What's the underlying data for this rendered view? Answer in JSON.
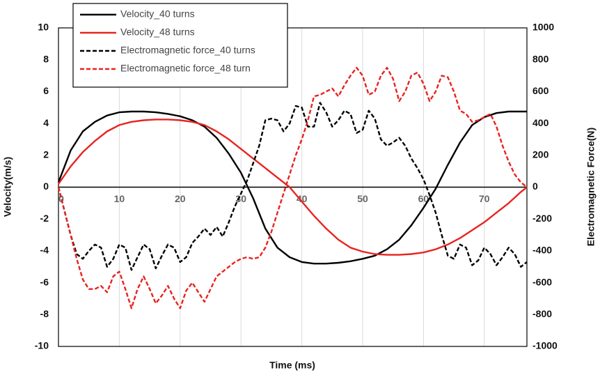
{
  "chart_data": {
    "type": "line",
    "xlabel": "Time (ms)",
    "ylabel": "Velocity(m/s)",
    "y2label": "Electromagnetic Force(N)",
    "xlim": [
      0,
      77
    ],
    "xticks": [
      0,
      10,
      20,
      30,
      40,
      50,
      60,
      70
    ],
    "ylim": [
      -10,
      10
    ],
    "yticks": [
      -10,
      -8,
      -6,
      -4,
      -2,
      0,
      2,
      4,
      6,
      8,
      10
    ],
    "y2lim": [
      -1000,
      1000
    ],
    "y2ticks": [
      -1000,
      -800,
      -600,
      -400,
      -200,
      0,
      200,
      400,
      600,
      800,
      1000
    ],
    "grid": true,
    "legend": "upper left",
    "series": [
      {
        "name": "Velocity_40 turns",
        "color": "#000000",
        "linestyle": "solid",
        "x": [
          0,
          2,
          4,
          6,
          8,
          10,
          12,
          14,
          16,
          18,
          20,
          22,
          24,
          26,
          28,
          30,
          32,
          34,
          36,
          38,
          40,
          42,
          44,
          46,
          48,
          50,
          52,
          54,
          56,
          58,
          60,
          62,
          64,
          66,
          68,
          70,
          72,
          74,
          76,
          77
        ],
        "values": [
          0.3,
          2.3,
          3.5,
          4.1,
          4.5,
          4.7,
          4.75,
          4.75,
          4.7,
          4.6,
          4.45,
          4.2,
          3.8,
          3.1,
          2.1,
          0.9,
          -0.7,
          -2.6,
          -3.8,
          -4.4,
          -4.7,
          -4.8,
          -4.8,
          -4.75,
          -4.65,
          -4.5,
          -4.3,
          -3.9,
          -3.3,
          -2.4,
          -1.3,
          -0.1,
          1.4,
          2.8,
          3.9,
          4.4,
          4.65,
          4.75,
          4.75,
          4.75
        ]
      },
      {
        "name": "Velocity_48 turns",
        "color": "#e8231f",
        "linestyle": "solid",
        "x": [
          0,
          2,
          4,
          6,
          8,
          10,
          12,
          14,
          16,
          18,
          20,
          22,
          24,
          26,
          28,
          30,
          32,
          34,
          36,
          38,
          40,
          42,
          44,
          46,
          48,
          50,
          52,
          54,
          56,
          58,
          60,
          62,
          64,
          66,
          68,
          70,
          72,
          74,
          76,
          77
        ],
        "values": [
          0.2,
          1.3,
          2.2,
          2.9,
          3.5,
          3.9,
          4.1,
          4.2,
          4.25,
          4.25,
          4.2,
          4.1,
          3.9,
          3.5,
          3.0,
          2.4,
          1.8,
          1.2,
          0.6,
          0,
          -0.9,
          -1.8,
          -2.6,
          -3.3,
          -3.8,
          -4.05,
          -4.2,
          -4.25,
          -4.25,
          -4.2,
          -4.1,
          -3.9,
          -3.6,
          -3.2,
          -2.7,
          -2.2,
          -1.6,
          -1.0,
          -0.3,
          0
        ]
      },
      {
        "name": "Electromagnetic force_40 turns",
        "color": "#000000",
        "linestyle": "dashed",
        "axis": "y2",
        "x": [
          0,
          1,
          2,
          3,
          4,
          5,
          6,
          7,
          8,
          9,
          10,
          11,
          12,
          13,
          14,
          15,
          16,
          17,
          18,
          19,
          20,
          21,
          22,
          23,
          24,
          25,
          26,
          27,
          28,
          29,
          30,
          31,
          32,
          33,
          34,
          35,
          36,
          37,
          38,
          39,
          40,
          41,
          42,
          43,
          44,
          45,
          46,
          47,
          48,
          49,
          50,
          51,
          52,
          53,
          54,
          55,
          56,
          57,
          58,
          59,
          60,
          61,
          62,
          63,
          64,
          65,
          66,
          67,
          68,
          69,
          70,
          71,
          72,
          73,
          74,
          75,
          76,
          77
        ],
        "values": [
          0,
          -150,
          -300,
          -420,
          -450,
          -400,
          -360,
          -380,
          -500,
          -450,
          -360,
          -380,
          -520,
          -440,
          -360,
          -390,
          -510,
          -430,
          -360,
          -380,
          -470,
          -440,
          -350,
          -310,
          -260,
          -300,
          -250,
          -310,
          -220,
          -120,
          -40,
          40,
          150,
          260,
          420,
          430,
          420,
          350,
          400,
          510,
          500,
          380,
          380,
          530,
          470,
          380,
          420,
          480,
          460,
          340,
          360,
          480,
          430,
          300,
          260,
          280,
          310,
          260,
          180,
          120,
          50,
          -50,
          -160,
          -300,
          -430,
          -450,
          -360,
          -380,
          -490,
          -460,
          -380,
          -420,
          -490,
          -440,
          -380,
          -420,
          -500,
          -470
        ]
      },
      {
        "name": "Electromagnetic force_48 turn",
        "color": "#e8231f",
        "linestyle": "dashed",
        "axis": "y2",
        "x": [
          0,
          1,
          2,
          3,
          4,
          5,
          6,
          7,
          8,
          9,
          10,
          11,
          12,
          13,
          14,
          15,
          16,
          17,
          18,
          19,
          20,
          21,
          22,
          23,
          24,
          25,
          26,
          27,
          28,
          29,
          30,
          31,
          32,
          33,
          34,
          35,
          36,
          37,
          38,
          39,
          40,
          41,
          42,
          43,
          44,
          45,
          46,
          47,
          48,
          49,
          50,
          51,
          52,
          53,
          54,
          55,
          56,
          57,
          58,
          59,
          60,
          61,
          62,
          63,
          64,
          65,
          66,
          67,
          68,
          69,
          70,
          71,
          72,
          73,
          74,
          75,
          76,
          77
        ],
        "values": [
          0,
          -150,
          -300,
          -450,
          -580,
          -640,
          -640,
          -620,
          -660,
          -560,
          -530,
          -640,
          -760,
          -640,
          -560,
          -640,
          -730,
          -680,
          -620,
          -700,
          -760,
          -650,
          -600,
          -660,
          -720,
          -640,
          -560,
          -530,
          -500,
          -470,
          -450,
          -440,
          -450,
          -440,
          -380,
          -280,
          -160,
          -40,
          80,
          200,
          300,
          420,
          570,
          580,
          600,
          620,
          570,
          640,
          700,
          750,
          700,
          580,
          600,
          700,
          750,
          680,
          540,
          600,
          700,
          720,
          650,
          540,
          600,
          700,
          690,
          600,
          480,
          460,
          410,
          420,
          440,
          460,
          380,
          260,
          160,
          80,
          30,
          0
        ]
      }
    ]
  }
}
